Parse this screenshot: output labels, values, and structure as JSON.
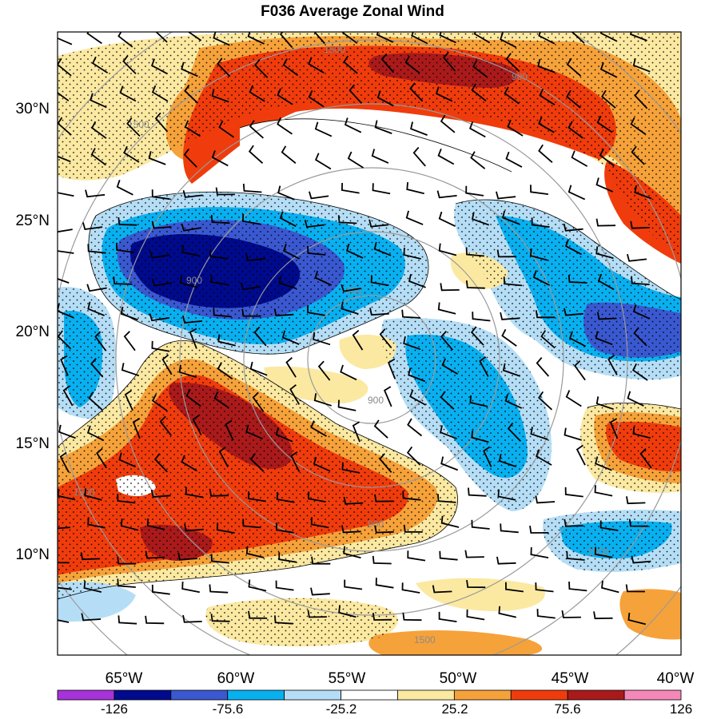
{
  "title": "F036 Average Zonal Wind",
  "map": {
    "lat_ticks": [
      "30°N",
      "25°N",
      "20°N",
      "15°N",
      "10°N"
    ],
    "lon_ticks": [
      "65°W",
      "60°W",
      "55°W",
      "50°W",
      "45°W",
      "40°W"
    ],
    "range_ring_labels": [
      "900",
      "900",
      "900",
      "1500",
      "1500",
      "1500",
      "1500",
      "1500",
      "900",
      "900"
    ]
  },
  "colorbar": {
    "labels": [
      "-126",
      "-75.6",
      "-25.2",
      "25.2",
      "75.6",
      "126"
    ],
    "colors": [
      "#a632d8",
      "#000a8c",
      "#3a58d0",
      "#09b0f0",
      "#b5def6",
      "#ffffff",
      "#fbe9a2",
      "#f6a23a",
      "#f03c0c",
      "#aa1a1a",
      "#f488b8"
    ]
  },
  "palette": {
    "strong_negative": "#000a8c",
    "negative": "#3a58d0",
    "moderate_negative": "#09b0f0",
    "weak_negative": "#b5def6",
    "weak_positive": "#fbe9a2",
    "moderate_positive": "#f6a23a",
    "positive": "#f03c0c",
    "strong_positive": "#aa1a1a"
  },
  "legend_icon": "wind-barb-icon"
}
